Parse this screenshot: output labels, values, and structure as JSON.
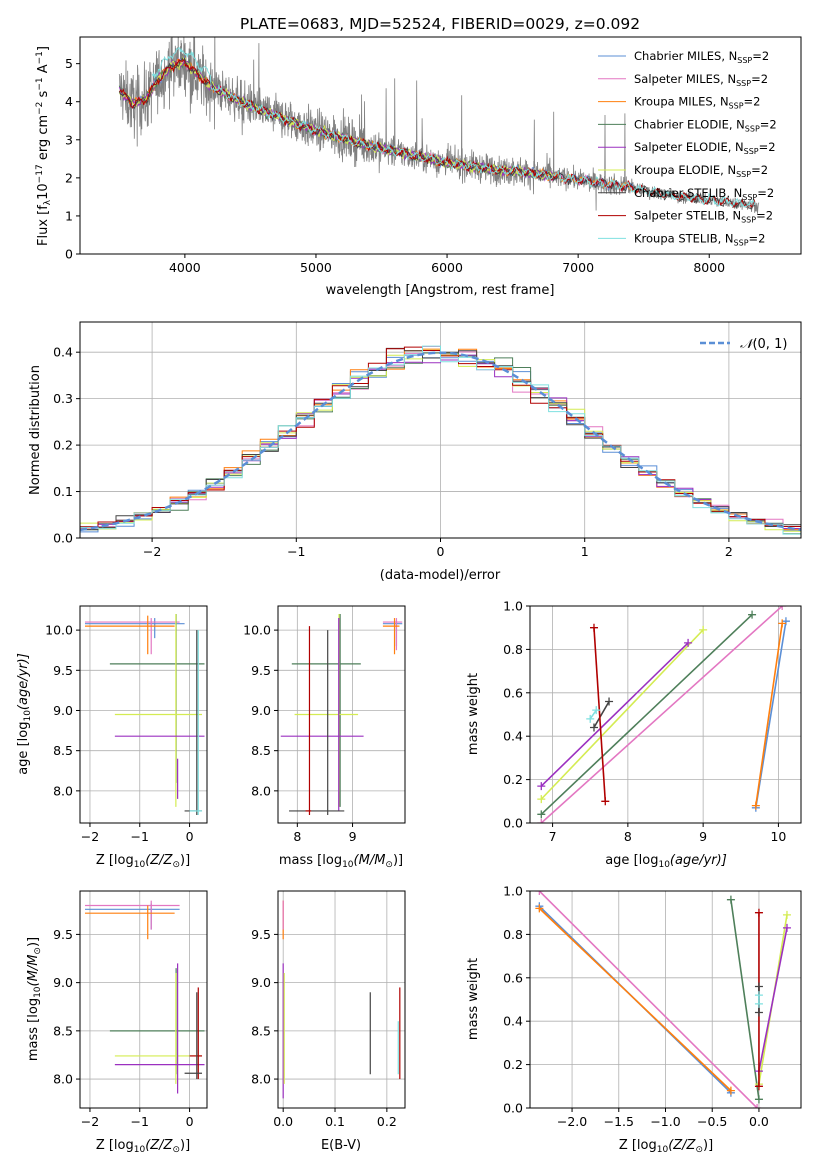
{
  "figure_title": "PLATE=0683, MJD=52524, FIBERID=0029, z=0.092",
  "colors": {
    "chabrier_miles": "#5b8fd6",
    "salpeter_miles": "#e377c2",
    "kroupa_miles": "#ff7f0e",
    "chabrier_elodie": "#4e7f5a",
    "salpeter_elodie": "#9b30c0",
    "kroupa_elodie": "#d4ec52",
    "chabrier_stelib": "#444444",
    "salpeter_stelib": "#b00000",
    "kroupa_stelib": "#7fe0e0",
    "data": "#7f7f7f",
    "normal": "#5b8fd6"
  },
  "chart_data": [
    {
      "id": "spectrum",
      "type": "line",
      "xlabel": "wavelength [Angstrom, rest frame]",
      "ylabel_main": "Flux [f",
      "ylabel_sub": "λ",
      "ylabel_mid": "10",
      "ylabel_sup1": "−17",
      "ylabel_mid2": " erg cm",
      "ylabel_sup2": "−2",
      "ylabel_mid3": " s",
      "ylabel_sup3": "−1",
      "ylabel_mid4": " A",
      "ylabel_sup4": "−1",
      "ylabel_end": "]",
      "xlim": [
        3200,
        8700
      ],
      "ylim": [
        0,
        5.7
      ],
      "xticks": [
        4000,
        5000,
        6000,
        7000,
        8000
      ],
      "yticks": [
        0,
        1,
        2,
        3,
        4,
        5
      ],
      "grid": false,
      "legend_position": "top-right",
      "continuum": {
        "x": [
          3500,
          3600,
          3700,
          3800,
          3900,
          4000,
          4100,
          4200,
          4400,
          4600,
          4800,
          5000,
          5200,
          5400,
          5600,
          5800,
          6000,
          6200,
          6400,
          6600,
          6800,
          7000,
          7200,
          7400,
          7600,
          7800,
          8000,
          8200,
          8350
        ],
        "y": [
          4.3,
          3.95,
          4.05,
          4.6,
          4.95,
          5.05,
          4.7,
          4.4,
          4.05,
          3.75,
          3.5,
          3.25,
          3.05,
          2.85,
          2.7,
          2.55,
          2.4,
          2.3,
          2.2,
          2.15,
          2.05,
          1.95,
          1.85,
          1.75,
          1.6,
          1.5,
          1.42,
          1.35,
          1.28
        ]
      },
      "legend": [
        {
          "name_a": "Chabrier MILES, N",
          "sub": "SSP",
          "name_b": "=2",
          "key": "chabrier_miles"
        },
        {
          "name_a": "Salpeter MILES, N",
          "sub": "SSP",
          "name_b": "=2",
          "key": "salpeter_miles"
        },
        {
          "name_a": "Kroupa MILES, N",
          "sub": "SSP",
          "name_b": "=2",
          "key": "kroupa_miles"
        },
        {
          "name_a": "Chabrier ELODIE, N",
          "sub": "SSP",
          "name_b": "=2",
          "key": "chabrier_elodie"
        },
        {
          "name_a": "Salpeter ELODIE, N",
          "sub": "SSP",
          "name_b": "=2",
          "key": "salpeter_elodie"
        },
        {
          "name_a": "Kroupa ELODIE, N",
          "sub": "SSP",
          "name_b": "=2",
          "key": "kroupa_elodie"
        },
        {
          "name_a": "Chabrier STELIB, N",
          "sub": "SSP",
          "name_b": "=2",
          "key": "chabrier_stelib"
        },
        {
          "name_a": "Salpeter STELIB, N",
          "sub": "SSP",
          "name_b": "=2",
          "key": "salpeter_stelib"
        },
        {
          "name_a": "Kroupa STELIB, N",
          "sub": "SSP",
          "name_b": "=2",
          "key": "kroupa_stelib"
        }
      ]
    },
    {
      "id": "residuals",
      "type": "histogram",
      "xlabel": "(data-model)/error",
      "ylabel": "Normed distribution",
      "xlim": [
        -2.5,
        2.5
      ],
      "ylim": [
        0,
        0.465
      ],
      "xticks": [
        -2,
        -1,
        0,
        1,
        2
      ],
      "xtick_labels": [
        "−2",
        "−1",
        "0",
        "1",
        "2"
      ],
      "yticks": [
        0,
        0.1,
        0.2,
        0.3,
        0.4
      ],
      "ytick_labels": [
        "0.0",
        "0.1",
        "0.2",
        "0.3",
        "0.4"
      ],
      "grid": true,
      "legend_position": "top-right",
      "normal_label_n": "𝒩",
      "normal_label_rest": "(0, 1)"
    },
    {
      "id": "age-vs-z",
      "type": "errorbar",
      "xlabel_a": "Z [log",
      "xlabel_sub": "10",
      "xlabel_b": "(Z/Z",
      "xlabel_sub2": "⊙",
      "xlabel_c": ")]",
      "ylabel_a": "age  [log",
      "ylabel_sub": "10",
      "ylabel_b": "(age/yr)]",
      "xlim": [
        -2.2,
        0.35
      ],
      "ylim": [
        7.6,
        10.3
      ],
      "xticks": [
        -2,
        -1,
        0
      ],
      "xtick_labels": [
        "−2",
        "−1",
        "0"
      ],
      "yticks": [
        8.0,
        8.5,
        9.0,
        9.5,
        10.0
      ],
      "ytick_labels": [
        "8.0",
        "8.5",
        "9.0",
        "9.5",
        "10.0"
      ],
      "grid": true,
      "bars": [
        {
          "key": "chabrier_miles",
          "x": [
            -2.1,
            -0.1
          ],
          "y": 10.08,
          "ybar": [
            9.9,
            10.15
          ]
        },
        {
          "key": "salpeter_miles",
          "x": [
            -2.1,
            -0.2
          ],
          "y": 10.1,
          "ybar": [
            9.7,
            10.15
          ]
        },
        {
          "key": "kroupa_miles",
          "x": [
            -2.1,
            -0.3
          ],
          "y": 10.05,
          "ybar": [
            9.7,
            10.18
          ]
        },
        {
          "key": "chabrier_elodie",
          "x": [
            -1.6,
            0.3
          ],
          "y": 9.58,
          "ybar": [
            8.1,
            10.2
          ]
        },
        {
          "key": "kroupa_elodie",
          "x": [
            -1.5,
            0.25
          ],
          "y": 8.95,
          "ybar": [
            7.8,
            10.2
          ]
        },
        {
          "key": "salpeter_elodie",
          "x": [
            -1.5,
            0.3
          ],
          "y": 8.68,
          "ybar": [
            7.9,
            8.4
          ]
        },
        {
          "key": "chabrier_stelib",
          "x": [
            -0.1,
            0.25
          ],
          "y": 7.75,
          "ybar": [
            7.7,
            10.0
          ]
        },
        {
          "key": "kroupa_stelib",
          "x": [
            0.0,
            0.25
          ],
          "y": 7.75,
          "ybar": [
            7.7,
            10.0
          ]
        }
      ]
    },
    {
      "id": "age-vs-mass",
      "type": "errorbar",
      "xlabel_a": "mass [log",
      "xlabel_sub": "10",
      "xlabel_b": "(M/M",
      "xlabel_sub2": "⊙",
      "xlabel_c": ")]",
      "xlim": [
        7.65,
        9.95
      ],
      "ylim": [
        7.6,
        10.3
      ],
      "xticks": [
        8,
        9
      ],
      "xtick_labels": [
        "8",
        "9"
      ],
      "yticks": [
        8.0,
        8.5,
        9.0,
        9.5,
        10.0
      ],
      "ytick_labels": [
        "8.0",
        "8.5",
        "9.0",
        "9.5",
        "10.0"
      ],
      "grid": true,
      "bars": [
        {
          "key": "chabrier_miles",
          "x": [
            9.55,
            9.9
          ],
          "y": 10.08,
          "ybar": [
            9.8,
            10.12
          ]
        },
        {
          "key": "salpeter_miles",
          "x": [
            9.55,
            9.9
          ],
          "y": 10.1,
          "ybar": [
            9.75,
            10.15
          ]
        },
        {
          "key": "kroupa_miles",
          "x": [
            9.55,
            9.85
          ],
          "y": 10.05,
          "ybar": [
            9.7,
            10.15
          ]
        },
        {
          "key": "chabrier_elodie",
          "x": [
            7.9,
            9.15
          ],
          "y": 9.58,
          "ybar": [
            7.8,
            10.2
          ]
        },
        {
          "key": "kroupa_elodie",
          "x": [
            7.95,
            9.1
          ],
          "y": 8.95,
          "ybar": [
            7.8,
            10.2
          ]
        },
        {
          "key": "salpeter_elodie",
          "x": [
            7.7,
            9.2
          ],
          "y": 8.68,
          "ybar": [
            7.75,
            10.15
          ]
        },
        {
          "key": "chabrier_stelib",
          "x": [
            7.85,
            8.85
          ],
          "y": 7.75,
          "ybar": [
            7.7,
            10.0
          ]
        },
        {
          "key": "salpeter_stelib",
          "x": [
            8.15,
            8.25
          ],
          "y": 7.75,
          "ybar": [
            7.7,
            10.05
          ]
        }
      ]
    },
    {
      "id": "weight-vs-age",
      "type": "line",
      "xlabel_a": "age  [log",
      "xlabel_sub": "10",
      "xlabel_b": "(age/yr)]",
      "ylabel": "mass weight",
      "xlim": [
        6.7,
        10.3
      ],
      "ylim": [
        0,
        1
      ],
      "xticks": [
        7,
        8,
        9,
        10
      ],
      "xtick_labels": [
        "7",
        "8",
        "9",
        "10"
      ],
      "yticks": [
        0,
        0.2,
        0.4,
        0.6,
        0.8,
        1.0
      ],
      "ytick_labels": [
        "0.0",
        "0.2",
        "0.4",
        "0.6",
        "0.8",
        "1.0"
      ],
      "grid": true,
      "series": [
        {
          "key": "salpeter_miles",
          "x": [
            6.85,
            10.05
          ],
          "y": [
            0.0,
            1.0
          ]
        },
        {
          "key": "chabrier_miles",
          "x": [
            9.7,
            10.1
          ],
          "y": [
            0.07,
            0.93
          ]
        },
        {
          "key": "kroupa_miles",
          "x": [
            9.7,
            10.05
          ],
          "y": [
            0.08,
            0.92
          ]
        },
        {
          "key": "chabrier_elodie",
          "x": [
            6.85,
            9.65
          ],
          "y": [
            0.04,
            0.96
          ]
        },
        {
          "key": "kroupa_elodie",
          "x": [
            6.85,
            9.0
          ],
          "y": [
            0.11,
            0.89
          ]
        },
        {
          "key": "salpeter_elodie",
          "x": [
            6.85,
            8.8
          ],
          "y": [
            0.17,
            0.83
          ]
        },
        {
          "key": "chabrier_stelib",
          "x": [
            7.55,
            7.75
          ],
          "y": [
            0.44,
            0.56
          ]
        },
        {
          "key": "salpeter_stelib",
          "x": [
            7.55,
            7.7
          ],
          "y": [
            0.9,
            0.1
          ]
        },
        {
          "key": "kroupa_stelib",
          "x": [
            7.5,
            7.58
          ],
          "y": [
            0.48,
            0.52
          ]
        }
      ]
    },
    {
      "id": "mass-vs-z",
      "type": "errorbar",
      "xlabel_a": "Z [log",
      "xlabel_sub": "10",
      "xlabel_b": "(Z/Z",
      "xlabel_sub2": "⊙",
      "xlabel_c": ")]",
      "ylabel_a": "mass [log",
      "ylabel_sub": "10",
      "ylabel_b": "(M/M",
      "ylabel_sub2": "⊙",
      "ylabel_c": ")]",
      "xlim": [
        -2.2,
        0.35
      ],
      "ylim": [
        7.7,
        9.95
      ],
      "xticks": [
        -2,
        -1,
        0
      ],
      "xtick_labels": [
        "−2",
        "−1",
        "0"
      ],
      "yticks": [
        8.0,
        8.5,
        9.0,
        9.5
      ],
      "ytick_labels": [
        "8.0",
        "8.5",
        "9.0",
        "9.5"
      ],
      "grid": true,
      "bars": [
        {
          "key": "chabrier_miles",
          "x": [
            -2.1,
            -0.2
          ],
          "y": 9.76,
          "ybar": [
            9.55,
            9.82
          ]
        },
        {
          "key": "salpeter_miles",
          "x": [
            -2.1,
            -0.2
          ],
          "y": 9.8,
          "ybar": [
            9.55,
            9.85
          ]
        },
        {
          "key": "kroupa_miles",
          "x": [
            -2.1,
            -0.3
          ],
          "y": 9.72,
          "ybar": [
            9.45,
            9.8
          ]
        },
        {
          "key": "chabrier_elodie",
          "x": [
            -1.6,
            0.3
          ],
          "y": 8.5,
          "ybar": [
            8.05,
            9.15
          ]
        },
        {
          "key": "kroupa_elodie",
          "x": [
            -1.5,
            0.25
          ],
          "y": 8.24,
          "ybar": [
            7.95,
            9.1
          ]
        },
        {
          "key": "salpeter_elodie",
          "x": [
            -1.5,
            0.3
          ],
          "y": 8.15,
          "ybar": [
            7.85,
            9.2
          ]
        },
        {
          "key": "salpeter_stelib",
          "x": [
            0.0,
            0.25
          ],
          "y": 8.24,
          "ybar": [
            8.0,
            8.95
          ]
        },
        {
          "key": "chabrier_stelib",
          "x": [
            -0.1,
            0.25
          ],
          "y": 8.06,
          "ybar": [
            8.0,
            8.9
          ]
        }
      ]
    },
    {
      "id": "mass-vs-ebv",
      "type": "errorbar",
      "xlabel": "E(B-V)",
      "xlim": [
        -0.01,
        0.235
      ],
      "ylim": [
        7.7,
        9.95
      ],
      "xticks": [
        0.0,
        0.1,
        0.2
      ],
      "xtick_labels": [
        "0.0",
        "0.1",
        "0.2"
      ],
      "yticks": [
        8.0,
        8.5,
        9.0,
        9.5
      ],
      "ytick_labels": [
        "8.0",
        "8.5",
        "9.0",
        "9.5"
      ],
      "grid": true,
      "bars": [
        {
          "key": "kroupa_miles",
          "x": 0.0,
          "ybar": [
            9.45,
            9.85
          ]
        },
        {
          "key": "salpeter_miles",
          "x": 0.0,
          "ybar": [
            9.55,
            9.85
          ]
        },
        {
          "key": "salpeter_elodie",
          "x": 0.0,
          "ybar": [
            7.8,
            9.2
          ]
        },
        {
          "key": "kroupa_elodie",
          "x": 0.002,
          "ybar": [
            7.95,
            9.1
          ]
        },
        {
          "key": "chabrier_stelib",
          "x": 0.168,
          "ybar": [
            8.05,
            8.9
          ]
        },
        {
          "key": "salpeter_stelib",
          "x": 0.225,
          "ybar": [
            8.0,
            8.95
          ]
        },
        {
          "key": "kroupa_stelib",
          "x": 0.222,
          "ybar": [
            8.05,
            8.6
          ]
        }
      ]
    },
    {
      "id": "weight-vs-z",
      "type": "line",
      "xlabel_a": "Z [log",
      "xlabel_sub": "10",
      "xlabel_b": "(Z/Z",
      "xlabel_sub2": "⊙",
      "xlabel_c": ")]",
      "ylabel": "mass weight",
      "xlim": [
        -2.45,
        0.45
      ],
      "ylim": [
        0,
        1
      ],
      "xticks": [
        -2.0,
        -1.5,
        -1.0,
        -0.5,
        0.0
      ],
      "xtick_labels": [
        "−2.0",
        "−1.5",
        "−1.0",
        "−0.5",
        "0.0"
      ],
      "yticks": [
        0,
        0.2,
        0.4,
        0.6,
        0.8,
        1.0
      ],
      "ytick_labels": [
        "0.0",
        "0.2",
        "0.4",
        "0.6",
        "0.8",
        "1.0"
      ],
      "grid": true,
      "series": [
        {
          "key": "salpeter_miles",
          "x": [
            -2.35,
            -0.02
          ],
          "y": [
            1.0,
            0.0
          ]
        },
        {
          "key": "chabrier_miles",
          "x": [
            -2.35,
            -0.3
          ],
          "y": [
            0.93,
            0.07
          ]
        },
        {
          "key": "kroupa_miles",
          "x": [
            -2.35,
            -0.3
          ],
          "y": [
            0.92,
            0.08
          ]
        },
        {
          "key": "chabrier_elodie",
          "x": [
            -0.3,
            0.0
          ],
          "y": [
            0.96,
            0.04
          ]
        },
        {
          "key": "kroupa_elodie",
          "x": [
            0.0,
            0.3
          ],
          "y": [
            0.11,
            0.89
          ]
        },
        {
          "key": "salpeter_elodie",
          "x": [
            0.0,
            0.3
          ],
          "y": [
            0.17,
            0.83
          ]
        },
        {
          "key": "salpeter_stelib",
          "x": [
            0.0,
            0.0
          ],
          "y": [
            0.1,
            0.9
          ]
        },
        {
          "key": "chabrier_stelib",
          "x": [
            0.0,
            0.0
          ],
          "y": [
            0.44,
            0.56
          ]
        },
        {
          "key": "kroupa_stelib",
          "x": [
            0.0,
            0.0
          ],
          "y": [
            0.48,
            0.52
          ]
        }
      ]
    }
  ]
}
